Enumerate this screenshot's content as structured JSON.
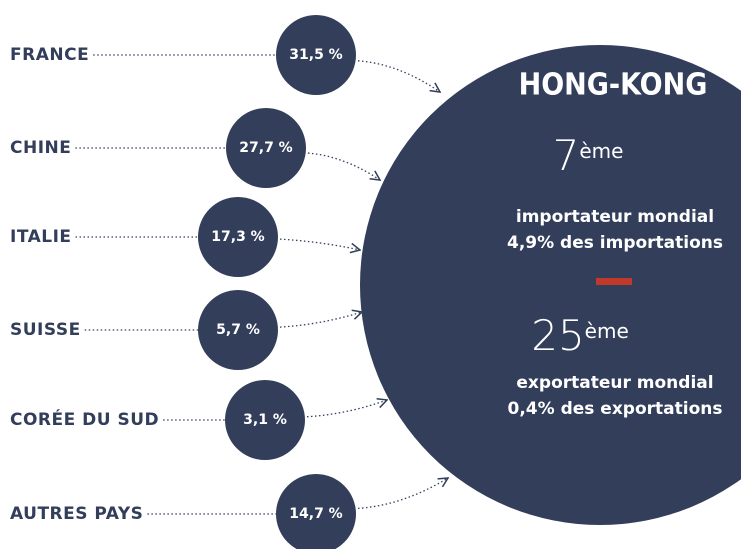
{
  "items": [
    {
      "label": "FRANCE",
      "value": "31,5 %"
    },
    {
      "label": "CHINE",
      "value": "27,7 %"
    },
    {
      "label": "ITALIE",
      "value": "17,3 %"
    },
    {
      "label": "SUISSE",
      "value": "5,7 %"
    },
    {
      "label": "CORÉE DU SUD",
      "value": "3,1 %"
    },
    {
      "label": "AUTRES PAYS",
      "value": "14,7 %"
    }
  ],
  "hub": {
    "title": "HONG-KONG",
    "import_rank": "7",
    "import_suffix": "ème",
    "import_line1": "importateur mondial",
    "import_line2": "4,9% des importations",
    "export_rank": "25",
    "export_suffix": "ème",
    "export_line1": "exportateur mondial",
    "export_line2": "0,4% des exportations"
  }
}
